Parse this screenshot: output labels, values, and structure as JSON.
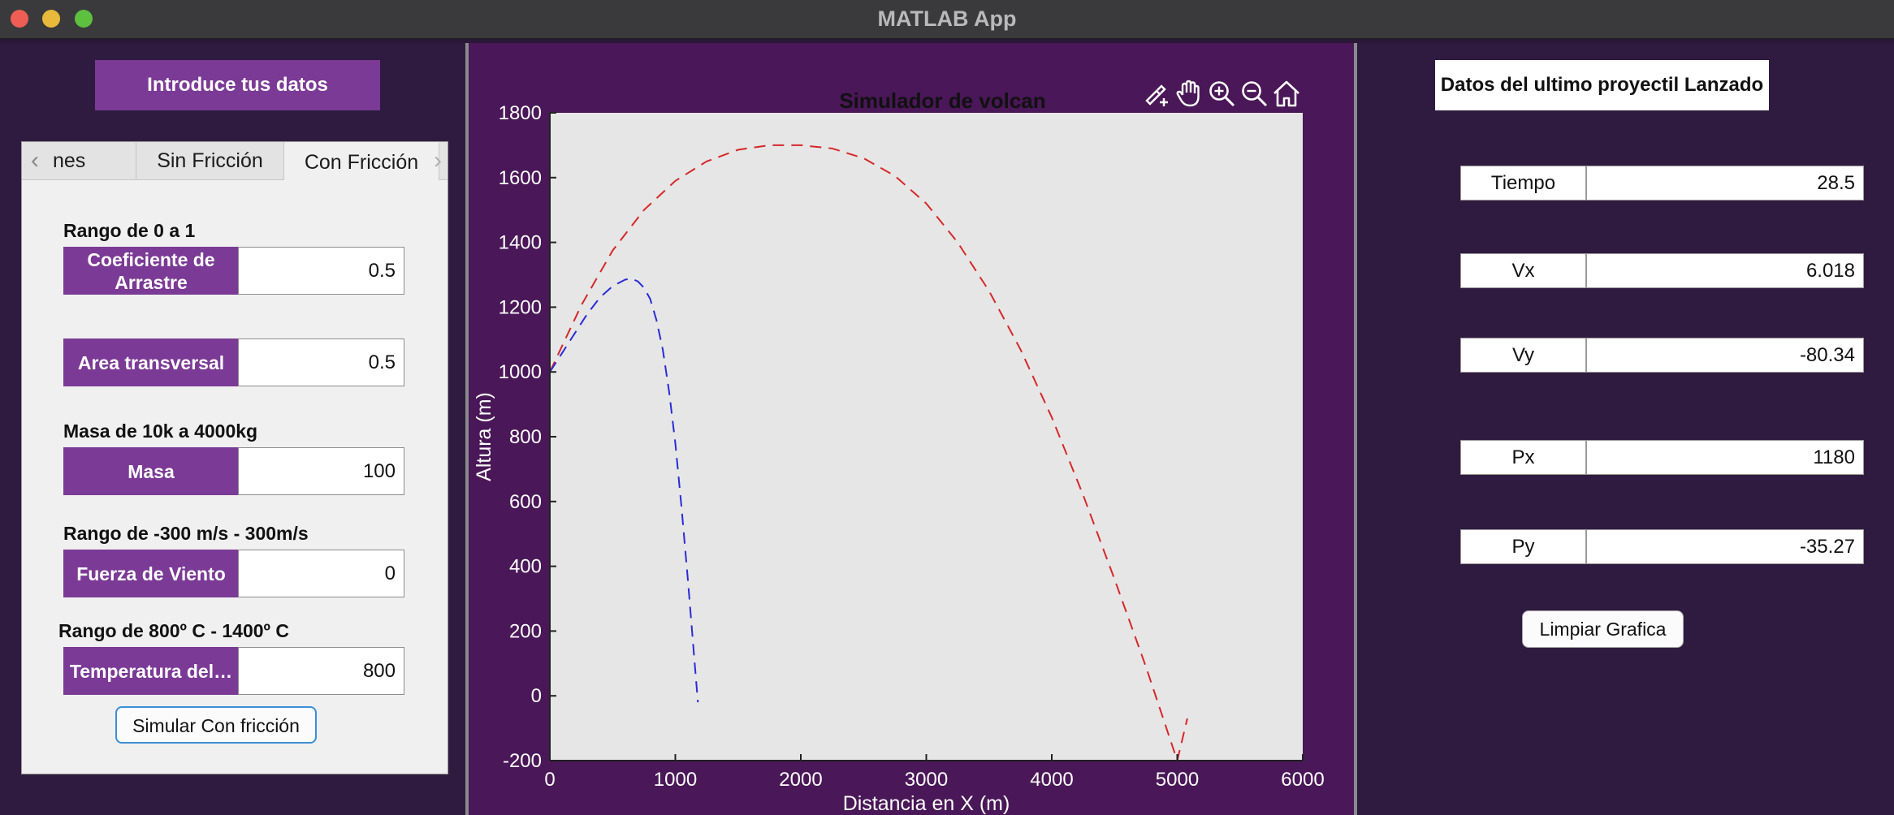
{
  "window": {
    "title": "MATLAB App"
  },
  "left": {
    "header_button": "Introduce tus datos",
    "tabs": [
      {
        "label": "nes"
      },
      {
        "label": "Sin Fricción"
      },
      {
        "label": "Con Fricción"
      }
    ],
    "range_drag": "Rango de 0 a 1",
    "drag_label": "Coeficiente de Arrastre",
    "drag_value": "0.5",
    "area_label": "Area transversal",
    "area_value": "0.5",
    "range_mass": "Masa de 10k a 4000kg",
    "mass_label": "Masa",
    "mass_value": "100",
    "range_wind": "Rango de -300 m/s - 300m/s",
    "wind_label": "Fuerza de Viento",
    "wind_value": "0",
    "range_temp": "Rango de 800º C - 1400º C",
    "temp_label": "Temperatura del…",
    "temp_value": "800",
    "simulate_button": "Simular Con fricción"
  },
  "chart_data": {
    "type": "line",
    "title": "Simulador de volcan",
    "xlabel": "Distancia en X (m)",
    "ylabel": "Altura (m)",
    "xlim": [
      0,
      6000
    ],
    "ylim": [
      -200,
      1800
    ],
    "xticks": [
      0,
      1000,
      2000,
      3000,
      4000,
      5000,
      6000
    ],
    "yticks": [
      -200,
      0,
      200,
      400,
      600,
      800,
      1000,
      1200,
      1400,
      1600,
      1800
    ],
    "grid": false,
    "background": "#e6e6e6",
    "series": [
      {
        "color": "#d62728",
        "style": "dashed",
        "x": [
          0,
          250,
          500,
          750,
          1000,
          1250,
          1500,
          1750,
          2000,
          2250,
          2500,
          2750,
          3000,
          3250,
          3500,
          3750,
          4000,
          4250,
          4500,
          4750,
          5000,
          5080
        ],
        "y": [
          1000,
          1205,
          1375,
          1500,
          1590,
          1650,
          1686,
          1700,
          1700,
          1690,
          1660,
          1605,
          1520,
          1400,
          1250,
          1070,
          860,
          620,
          360,
          90,
          -200,
          -70
        ]
      },
      {
        "color": "#2b2bd6",
        "style": "dashed",
        "x": [
          0,
          100,
          200,
          300,
          400,
          500,
          600,
          650,
          700,
          750,
          800,
          850,
          900,
          950,
          1000,
          1050,
          1100,
          1150,
          1180
        ],
        "y": [
          1000,
          1060,
          1120,
          1180,
          1230,
          1265,
          1285,
          1288,
          1280,
          1260,
          1225,
          1160,
          1070,
          940,
          780,
          580,
          360,
          120,
          -20
        ]
      }
    ]
  },
  "right": {
    "header": "Datos del ultimo proyectil Lanzado",
    "fields": [
      {
        "label": "Tiempo",
        "value": "28.5"
      },
      {
        "label": "Vx",
        "value": "6.018"
      },
      {
        "label": "Vy",
        "value": "-80.34"
      },
      {
        "label": "Px",
        "value": "1180"
      },
      {
        "label": "Py",
        "value": "-35.27"
      }
    ],
    "clear_button": "Limpiar Grafica"
  },
  "toolbar": {
    "icons": [
      "brush-icon",
      "pan-hand-icon",
      "zoom-in-icon",
      "zoom-out-icon",
      "home-icon"
    ]
  },
  "colors": {
    "accent": "#7b3a96",
    "center_bg": "#4a1758",
    "side_bg": "#2f1b3f"
  }
}
